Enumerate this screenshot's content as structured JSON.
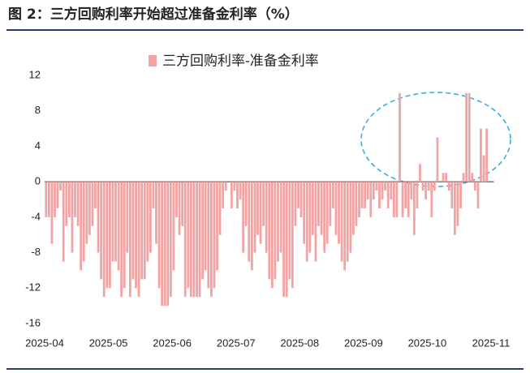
{
  "title": "图 2：三方回购利率开始超过准备金利率（%）",
  "chart_data": {
    "type": "bar",
    "series": [
      {
        "name": "三方回购利率-准备金利率",
        "color": "#f2a3a3",
        "values": [
          -4,
          -4,
          -7,
          -4,
          -3,
          -1,
          -9,
          -5,
          -4,
          -8,
          -4,
          -5,
          -10,
          -9,
          -7,
          -6,
          -5,
          -3,
          -8,
          -11,
          -13,
          -12,
          -12,
          -9,
          -9,
          -10,
          -13,
          -12,
          -8,
          -13,
          -11,
          -12,
          -13,
          -11,
          -11,
          -9,
          -8,
          -3,
          -7,
          -12,
          -14,
          -14,
          -14,
          -13,
          -10,
          -4,
          -6,
          -5,
          -13,
          -12,
          -13,
          -13,
          -13,
          -13,
          -11,
          -10,
          -12,
          -13,
          -12,
          -10,
          -6,
          -3,
          -1,
          0,
          -3,
          -1,
          -3,
          -2,
          -8,
          -5,
          -9,
          -10,
          -8,
          -6,
          -7,
          -5,
          -8,
          -11,
          -12,
          -11,
          -9,
          -8,
          -13,
          -13,
          -11,
          -12,
          -5,
          -3,
          -4,
          -7,
          -9,
          -8,
          -6,
          -9,
          -5,
          -6,
          -8,
          -7,
          -5,
          -3,
          -6,
          -7,
          -9,
          -10,
          -9,
          -8,
          -6,
          -5,
          -4,
          -3,
          -3,
          -2,
          -4,
          -2,
          -1,
          -3,
          -2,
          -1,
          -3,
          -2,
          -4,
          -4,
          10,
          -4,
          -3,
          -4,
          -2,
          -6,
          -3,
          2,
          -1,
          -2,
          -1,
          -4,
          -1,
          5,
          0,
          1,
          1,
          -1,
          -3,
          -6,
          -5,
          -3,
          1,
          10,
          10,
          1,
          -1,
          -3,
          6,
          3,
          6,
          null,
          null
        ]
      }
    ],
    "categories": [
      "2025-04",
      null,
      null,
      null,
      null,
      null,
      null,
      null,
      null,
      null,
      null,
      null,
      null,
      null,
      null,
      null,
      null,
      null,
      null,
      null,
      null,
      null,
      "2025-05",
      null,
      null,
      null,
      null,
      null,
      null,
      null,
      null,
      null,
      null,
      null,
      null,
      null,
      null,
      null,
      null,
      null,
      null,
      null,
      null,
      null,
      "2025-06",
      null,
      null,
      null,
      null,
      null,
      null,
      null,
      null,
      null,
      null,
      null,
      null,
      null,
      null,
      null,
      null,
      null,
      null,
      null,
      null,
      null,
      "2025-07",
      null,
      null,
      null,
      null,
      null,
      null,
      null,
      null,
      null,
      null,
      null,
      null,
      null,
      null,
      null,
      null,
      null,
      null,
      null,
      null,
      null,
      "2025-08",
      null,
      null,
      null,
      null,
      null,
      null,
      null,
      null,
      null,
      null,
      null,
      null,
      null,
      null,
      null,
      null,
      null,
      null,
      null,
      null,
      null,
      "2025-09",
      null,
      null,
      null,
      null,
      null,
      null,
      null,
      null,
      null,
      null,
      null,
      null,
      null,
      null,
      null,
      null,
      null,
      null,
      null,
      null,
      null,
      "2025-10",
      null,
      null,
      null,
      null,
      null,
      null,
      null,
      null,
      null,
      null,
      null,
      null,
      null,
      null,
      null,
      null,
      null,
      null,
      null,
      null,
      null,
      "2025-11"
    ],
    "ylim": [
      -16,
      12
    ],
    "yticks": [
      -16,
      -12,
      -8,
      -4,
      0,
      4,
      8,
      12
    ],
    "legend": "top"
  }
}
